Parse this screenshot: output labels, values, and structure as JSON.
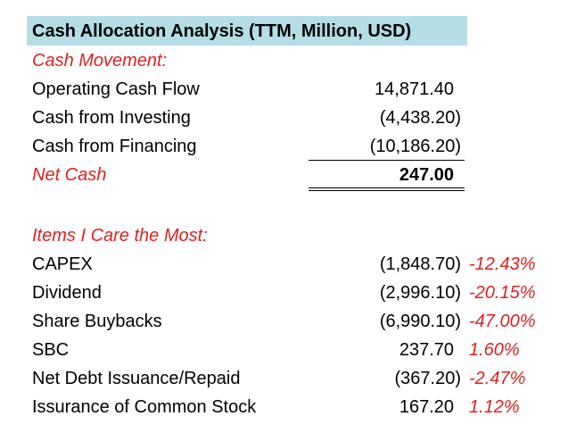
{
  "title": "Cash Allocation Analysis (TTM, Million, USD)",
  "cash_movement": {
    "header": "Cash Movement:",
    "rows": [
      {
        "label": "Operating Cash Flow",
        "value": "14,871.40"
      },
      {
        "label": "Cash from Investing",
        "value": "(4,438.20)"
      },
      {
        "label": "Cash from Financing",
        "value": "(10,186.20)"
      }
    ],
    "net_label": "Net Cash",
    "net_value": "247.00"
  },
  "items": {
    "header": "Items I Care the Most:",
    "rows": [
      {
        "label": "CAPEX",
        "value": "(1,848.70)",
        "pct": "-12.43%"
      },
      {
        "label": "Dividend",
        "value": "(2,996.10)",
        "pct": "-20.15%"
      },
      {
        "label": "Share Buybacks",
        "value": "(6,990.10)",
        "pct": "-47.00%"
      },
      {
        "label": "SBC",
        "value": "237.70",
        "pct": "1.60%"
      },
      {
        "label": "Net Debt Issuance/Repaid",
        "value": "(367.20)",
        "pct": "-2.47%"
      },
      {
        "label": "Issurance of Common Stock",
        "value": "167.20",
        "pct": "1.12%"
      }
    ]
  },
  "colors": {
    "accent_red": "#e02020",
    "title_bg": "#b4dde6"
  }
}
